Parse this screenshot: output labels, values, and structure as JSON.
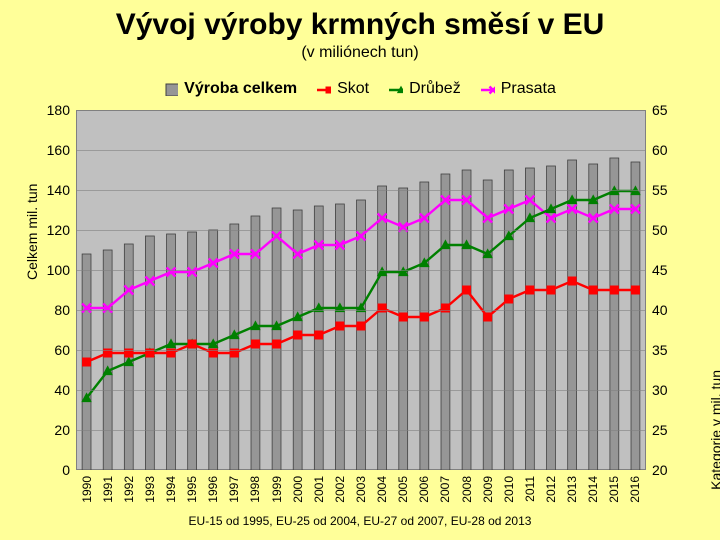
{
  "title": "Vývoj výroby krmných směsí v EU",
  "subtitle": "(v miliónech tun)",
  "footnote": "EU-15 od 1995, EU-25 od 2004, EU-27 od 2007, EU-28 od 2013",
  "background_color": "#ffff99",
  "plot_bg": "#c0c0c0",
  "grid_color": "#808080",
  "years": [
    "1990",
    "1991",
    "1992",
    "1993",
    "1994",
    "1995",
    "1996",
    "1997",
    "1998",
    "1999",
    "2000",
    "2001",
    "2002",
    "2003",
    "2004",
    "2005",
    "2006",
    "2007",
    "2008",
    "2009",
    "2010",
    "2011",
    "2012",
    "2013",
    "2014",
    "2015",
    "2016"
  ],
  "left_axis": {
    "title": "Celkem mil. tun",
    "min": 0,
    "max": 180,
    "step": 20,
    "fontsize": 14
  },
  "right_axis": {
    "title": "Kategorie v mil. tun",
    "min": 20,
    "max": 60,
    "step": 5,
    "fontsize": 14
  },
  "legend": [
    {
      "key": "total",
      "label": "Výroba celkem",
      "marker": "bar",
      "color": "#969696"
    },
    {
      "key": "cattle",
      "label": "Skot",
      "marker": "square",
      "color": "#ff0000"
    },
    {
      "key": "poultry",
      "label": "Drůbež",
      "marker": "triangle",
      "color": "#008000"
    },
    {
      "key": "pigs",
      "label": "Prasata",
      "marker": "cross",
      "color": "#ff00ff"
    }
  ],
  "series": {
    "total": [
      108,
      110,
      113,
      117,
      118,
      119,
      120,
      123,
      127,
      131,
      130,
      132,
      133,
      135,
      142,
      141,
      144,
      148,
      150,
      145,
      150,
      151,
      152,
      155,
      153,
      156,
      154
    ],
    "cattle": [
      32,
      33,
      33,
      33,
      33,
      34,
      33,
      33,
      34,
      34,
      35,
      35,
      36,
      36,
      38,
      37,
      37,
      38,
      40,
      37,
      39,
      40,
      40,
      41,
      40,
      40,
      40
    ],
    "poultry": [
      28,
      31,
      32,
      33,
      34,
      34,
      34,
      35,
      36,
      36,
      37,
      38,
      38,
      38,
      42,
      42,
      43,
      45,
      45,
      44,
      46,
      48,
      49,
      50,
      50,
      51,
      51
    ],
    "pigs": [
      38,
      38,
      40,
      41,
      42,
      42,
      43,
      44,
      44,
      46,
      44,
      45,
      45,
      46,
      48,
      47,
      48,
      50,
      50,
      48,
      49,
      50,
      48,
      49,
      48,
      49,
      49
    ]
  },
  "chart": {
    "bar_color": "#969696",
    "bar_border": "#404040",
    "line_width": 2.4,
    "marker_size": 9,
    "bar_width_ratio": 0.42
  }
}
